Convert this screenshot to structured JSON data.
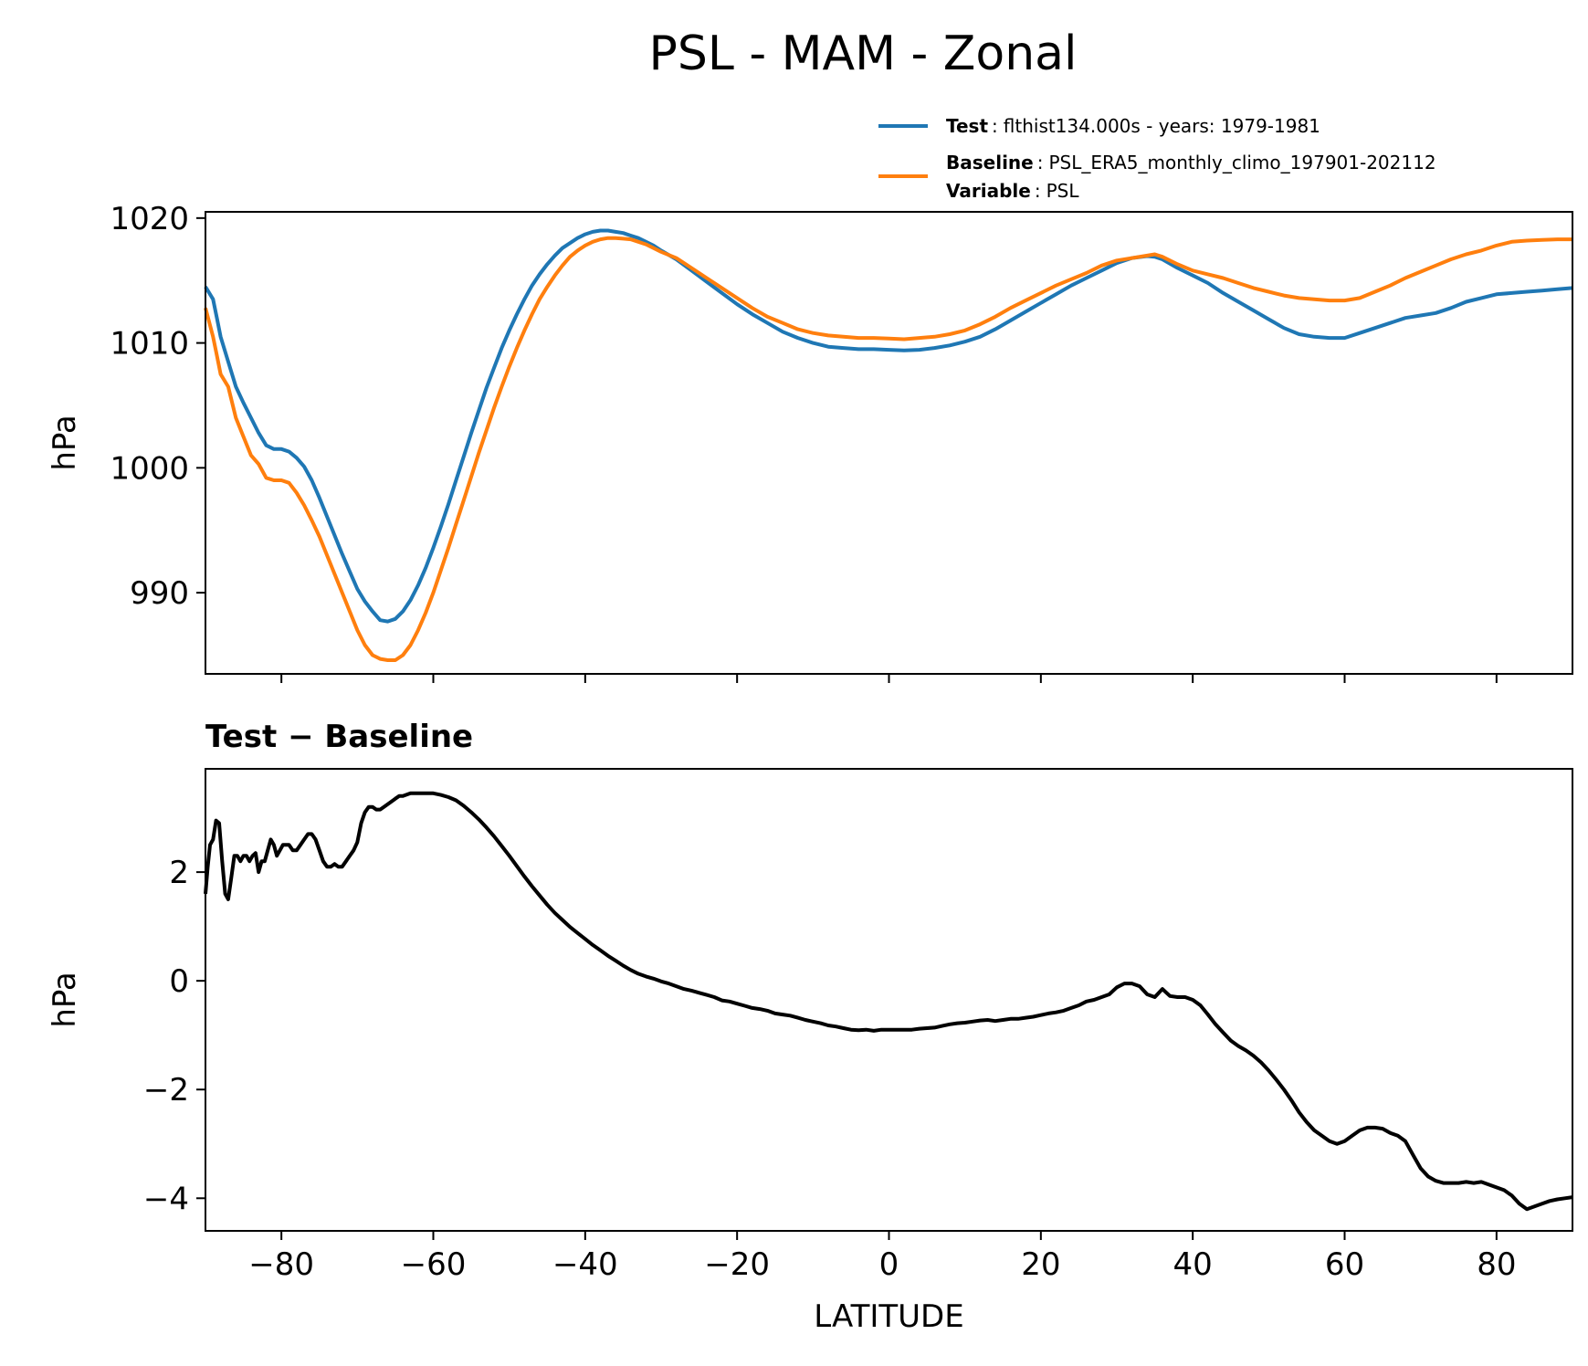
{
  "title": "PSL - MAM - Zonal",
  "legend": [
    {
      "key": "Test",
      "value": "flthist134.000s - years: 1979-1981",
      "color": "#1f77b4"
    },
    {
      "key": "Baseline",
      "value": "PSL_ERA5_monthly_climo_197901-202112",
      "color": "#ff7f0e"
    },
    {
      "key": "Variable",
      "value": "PSL"
    }
  ],
  "chart_data": [
    {
      "type": "line",
      "ylabel": "hPa",
      "xlabel": "",
      "xlim": [
        -90,
        90
      ],
      "ylim": [
        983.5,
        1020.5
      ],
      "yticks": [
        990,
        1000,
        1010,
        1020
      ],
      "xticks": [
        -80,
        -60,
        -40,
        -20,
        0,
        20,
        40,
        60,
        80
      ],
      "series": [
        {
          "name": "Test",
          "color": "#1f77b4",
          "x": [
            -90,
            -89,
            -88.5,
            -88,
            -87,
            -86,
            -85,
            -84,
            -83,
            -82,
            -81,
            -80,
            -79,
            -78,
            -77,
            -76,
            -75,
            -74,
            -73,
            -72,
            -71,
            -70,
            -69,
            -68,
            -67,
            -66,
            -65,
            -64,
            -63,
            -62,
            -61,
            -60,
            -59,
            -58,
            -57,
            -56,
            -55,
            -54,
            -53,
            -52,
            -51,
            -50,
            -49,
            -48,
            -47,
            -46,
            -45,
            -44,
            -43,
            -42,
            -41,
            -40,
            -39,
            -38,
            -37,
            -36,
            -35,
            -34,
            -33,
            -32,
            -31,
            -30,
            -28,
            -26,
            -24,
            -22,
            -20,
            -18,
            -16,
            -14,
            -12,
            -10,
            -8,
            -6,
            -4,
            -2,
            0,
            2,
            4,
            6,
            8,
            10,
            12,
            14,
            16,
            18,
            20,
            22,
            24,
            26,
            28,
            30,
            32,
            34,
            35,
            36,
            38,
            40,
            42,
            44,
            46,
            48,
            50,
            52,
            54,
            56,
            58,
            60,
            62,
            64,
            66,
            68,
            70,
            72,
            74,
            76,
            78,
            80,
            82,
            84,
            86,
            88,
            90
          ],
          "y": [
            1014.5,
            1013.5,
            1012,
            1010.5,
            1008.5,
            1006.5,
            1005.2,
            1004.0,
            1002.8,
            1001.8,
            1001.5,
            1001.5,
            1001.3,
            1000.8,
            1000.1,
            999.0,
            997.6,
            996.1,
            994.6,
            993.1,
            991.7,
            990.3,
            989.3,
            988.5,
            987.8,
            987.7,
            987.9,
            988.5,
            989.4,
            990.6,
            992.0,
            993.6,
            995.3,
            997.1,
            999.0,
            1000.9,
            1002.8,
            1004.6,
            1006.4,
            1008.0,
            1009.6,
            1011.0,
            1012.3,
            1013.5,
            1014.6,
            1015.5,
            1016.3,
            1017.0,
            1017.6,
            1018.0,
            1018.4,
            1018.7,
            1018.9,
            1019.0,
            1019.0,
            1018.9,
            1018.8,
            1018.6,
            1018.4,
            1018.1,
            1017.8,
            1017.4,
            1016.7,
            1015.8,
            1014.9,
            1014.0,
            1013.1,
            1012.3,
            1011.6,
            1010.9,
            1010.4,
            1010.0,
            1009.7,
            1009.6,
            1009.5,
            1009.5,
            1009.45,
            1009.4,
            1009.45,
            1009.6,
            1009.8,
            1010.1,
            1010.5,
            1011.1,
            1011.8,
            1012.5,
            1013.2,
            1013.9,
            1014.6,
            1015.2,
            1015.8,
            1016.4,
            1016.8,
            1016.95,
            1016.9,
            1016.7,
            1016.0,
            1015.4,
            1014.8,
            1014.0,
            1013.3,
            1012.6,
            1011.9,
            1011.2,
            1010.7,
            1010.5,
            1010.4,
            1010.4,
            1010.8,
            1011.2,
            1011.6,
            1012.0,
            1012.2,
            1012.4,
            1012.8,
            1013.3,
            1013.6,
            1013.9,
            1014.0,
            1014.1,
            1014.2,
            1014.3,
            1014.4
          ]
        },
        {
          "name": "Baseline",
          "color": "#ff7f0e",
          "x": [
            -90,
            -89,
            -88.5,
            -88,
            -87,
            -86,
            -85,
            -84,
            -83,
            -82,
            -81,
            -80,
            -79,
            -78,
            -77,
            -76,
            -75,
            -74,
            -73,
            -72,
            -71,
            -70,
            -69,
            -68,
            -67,
            -66,
            -65,
            -64,
            -63,
            -62,
            -61,
            -60,
            -59,
            -58,
            -57,
            -56,
            -55,
            -54,
            -53,
            -52,
            -51,
            -50,
            -49,
            -48,
            -47,
            -46,
            -45,
            -44,
            -43,
            -42,
            -41,
            -40,
            -39,
            -38,
            -37,
            -36,
            -35,
            -34,
            -33,
            -32,
            -31,
            -30,
            -28,
            -26,
            -24,
            -22,
            -20,
            -18,
            -16,
            -14,
            -12,
            -10,
            -8,
            -6,
            -4,
            -2,
            0,
            2,
            4,
            6,
            8,
            10,
            12,
            14,
            16,
            18,
            20,
            22,
            24,
            26,
            28,
            30,
            32,
            34,
            35,
            36,
            38,
            40,
            42,
            44,
            46,
            48,
            50,
            52,
            54,
            56,
            58,
            60,
            62,
            64,
            66,
            68,
            70,
            72,
            74,
            76,
            78,
            80,
            82,
            84,
            86,
            88,
            90
          ],
          "y": [
            1012.8,
            1010.5,
            1009,
            1007.5,
            1006.5,
            1004.0,
            1002.5,
            1001.0,
            1000.3,
            999.2,
            999.0,
            999.0,
            998.8,
            998.0,
            997.0,
            995.8,
            994.5,
            993.0,
            991.5,
            990.0,
            988.5,
            987.0,
            985.8,
            985.0,
            984.7,
            984.6,
            984.6,
            985.0,
            985.8,
            987.0,
            988.4,
            990.0,
            991.8,
            993.6,
            995.5,
            997.4,
            999.3,
            1001.2,
            1003.0,
            1004.8,
            1006.5,
            1008.1,
            1009.6,
            1011.0,
            1012.3,
            1013.5,
            1014.5,
            1015.4,
            1016.2,
            1016.9,
            1017.4,
            1017.8,
            1018.1,
            1018.3,
            1018.4,
            1018.4,
            1018.35,
            1018.3,
            1018.1,
            1017.9,
            1017.6,
            1017.3,
            1016.8,
            1016.0,
            1015.2,
            1014.4,
            1013.6,
            1012.8,
            1012.1,
            1011.6,
            1011.1,
            1010.8,
            1010.6,
            1010.5,
            1010.4,
            1010.4,
            1010.35,
            1010.3,
            1010.4,
            1010.5,
            1010.7,
            1011.0,
            1011.5,
            1012.1,
            1012.8,
            1013.4,
            1014.0,
            1014.6,
            1015.1,
            1015.6,
            1016.2,
            1016.6,
            1016.8,
            1017.0,
            1017.1,
            1016.9,
            1016.3,
            1015.8,
            1015.5,
            1015.2,
            1014.8,
            1014.4,
            1014.1,
            1013.8,
            1013.6,
            1013.5,
            1013.4,
            1013.4,
            1013.6,
            1014.1,
            1014.6,
            1015.2,
            1015.7,
            1016.2,
            1016.7,
            1017.1,
            1017.4,
            1017.8,
            1018.1,
            1018.2,
            1018.25,
            1018.3,
            1018.3
          ]
        }
      ]
    },
    {
      "type": "line",
      "title": "Test − Baseline",
      "ylabel": "hPa",
      "xlabel": "LATITUDE",
      "xlim": [
        -90,
        90
      ],
      "ylim": [
        -4.6,
        3.9
      ],
      "yticks": [
        -4,
        -2,
        0,
        2
      ],
      "ytick_labels": [
        "−4",
        "−2",
        "0",
        "2"
      ],
      "xticks": [
        -80,
        -60,
        -40,
        -20,
        0,
        20,
        40,
        60,
        80
      ],
      "xtick_labels": [
        "−80",
        "−60",
        "−40",
        "−20",
        "0",
        "20",
        "40",
        "60",
        "80"
      ],
      "series": [
        {
          "name": "Test − Baseline",
          "color": "#000000",
          "x": [
            -90,
            -89.7,
            -89.4,
            -89,
            -88.6,
            -88.2,
            -87.8,
            -87.4,
            -87,
            -86.6,
            -86.2,
            -85.8,
            -85.4,
            -85,
            -84.6,
            -84.2,
            -83.8,
            -83.4,
            -83,
            -82.6,
            -82.2,
            -81.8,
            -81.4,
            -81,
            -80.6,
            -80.2,
            -79.8,
            -79.4,
            -79,
            -78.5,
            -78,
            -77.5,
            -77,
            -76.5,
            -76,
            -75.5,
            -75,
            -74.5,
            -74,
            -73.5,
            -73,
            -72.5,
            -72,
            -71.5,
            -71,
            -70.5,
            -70,
            -69.5,
            -69,
            -68.5,
            -68,
            -67.5,
            -67,
            -66.5,
            -66,
            -65.5,
            -65,
            -64.5,
            -64,
            -63,
            -62,
            -61,
            -60,
            -59,
            -58,
            -57,
            -56,
            -55,
            -54,
            -53,
            -52,
            -51,
            -50,
            -49,
            -48,
            -47,
            -46,
            -45,
            -44,
            -43,
            -42,
            -41,
            -40,
            -39,
            -38,
            -37,
            -36,
            -35,
            -34,
            -33,
            -32,
            -31,
            -30,
            -29,
            -28,
            -27,
            -26,
            -25,
            -24,
            -23,
            -22,
            -21,
            -20,
            -19,
            -18,
            -17,
            -16,
            -15,
            -14,
            -13,
            -12,
            -11,
            -10,
            -9,
            -8,
            -7,
            -6,
            -5,
            -4,
            -3,
            -2,
            -1,
            0,
            1,
            2,
            3,
            4,
            5,
            6,
            7,
            8,
            9,
            10,
            11,
            12,
            13,
            14,
            15,
            16,
            17,
            18,
            19,
            20,
            21,
            22,
            23,
            24,
            25,
            26,
            27,
            28,
            29,
            30,
            31,
            32,
            33,
            34,
            35,
            36,
            37,
            38,
            39,
            40,
            41,
            42,
            43,
            44,
            45,
            46,
            47,
            48,
            49,
            50,
            51,
            52,
            53,
            54,
            55,
            56,
            57,
            58,
            59,
            60,
            61,
            62,
            63,
            64,
            65,
            66,
            67,
            68,
            69,
            70,
            71,
            72,
            73,
            74,
            75,
            76,
            77,
            78,
            79,
            80,
            81,
            82,
            83,
            84,
            85,
            86,
            87,
            88,
            89,
            90
          ],
          "y": [
            1.6,
            2.1,
            2.5,
            2.6,
            2.95,
            2.9,
            2.2,
            1.6,
            1.5,
            1.9,
            2.3,
            2.3,
            2.2,
            2.3,
            2.3,
            2.2,
            2.3,
            2.35,
            2.0,
            2.2,
            2.2,
            2.4,
            2.6,
            2.5,
            2.3,
            2.4,
            2.5,
            2.5,
            2.5,
            2.4,
            2.4,
            2.5,
            2.6,
            2.7,
            2.7,
            2.6,
            2.4,
            2.2,
            2.1,
            2.1,
            2.15,
            2.1,
            2.1,
            2.2,
            2.3,
            2.4,
            2.55,
            2.9,
            3.1,
            3.2,
            3.2,
            3.15,
            3.15,
            3.2,
            3.25,
            3.3,
            3.35,
            3.4,
            3.4,
            3.45,
            3.45,
            3.45,
            3.45,
            3.42,
            3.38,
            3.32,
            3.22,
            3.1,
            2.97,
            2.82,
            2.66,
            2.48,
            2.3,
            2.11,
            1.92,
            1.74,
            1.57,
            1.4,
            1.25,
            1.12,
            0.99,
            0.88,
            0.77,
            0.66,
            0.56,
            0.46,
            0.37,
            0.28,
            0.2,
            0.13,
            0.08,
            0.04,
            -0.01,
            -0.05,
            -0.1,
            -0.15,
            -0.18,
            -0.22,
            -0.26,
            -0.3,
            -0.36,
            -0.38,
            -0.42,
            -0.46,
            -0.5,
            -0.52,
            -0.55,
            -0.6,
            -0.62,
            -0.64,
            -0.68,
            -0.72,
            -0.75,
            -0.78,
            -0.82,
            -0.84,
            -0.87,
            -0.9,
            -0.91,
            -0.9,
            -0.92,
            -0.9,
            -0.9,
            -0.9,
            -0.9,
            -0.9,
            -0.88,
            -0.87,
            -0.86,
            -0.83,
            -0.8,
            -0.78,
            -0.77,
            -0.75,
            -0.73,
            -0.72,
            -0.74,
            -0.72,
            -0.7,
            -0.7,
            -0.68,
            -0.66,
            -0.63,
            -0.6,
            -0.58,
            -0.55,
            -0.5,
            -0.45,
            -0.38,
            -0.35,
            -0.3,
            -0.25,
            -0.12,
            -0.05,
            -0.05,
            -0.1,
            -0.25,
            -0.3,
            -0.15,
            -0.28,
            -0.3,
            -0.3,
            -0.35,
            -0.45,
            -0.62,
            -0.8,
            -0.95,
            -1.1,
            -1.2,
            -1.28,
            -1.38,
            -1.5,
            -1.65,
            -1.82,
            -2.0,
            -2.2,
            -2.42,
            -2.6,
            -2.75,
            -2.85,
            -2.95,
            -3.0,
            -2.95,
            -2.85,
            -2.75,
            -2.7,
            -2.7,
            -2.72,
            -2.8,
            -2.85,
            -2.95,
            -3.2,
            -3.45,
            -3.6,
            -3.68,
            -3.72,
            -3.72,
            -3.72,
            -3.7,
            -3.72,
            -3.7,
            -3.75,
            -3.8,
            -3.85,
            -3.95,
            -4.1,
            -4.2,
            -4.15,
            -4.1,
            -4.05,
            -4.02,
            -4.0,
            -3.98
          ]
        }
      ]
    }
  ]
}
